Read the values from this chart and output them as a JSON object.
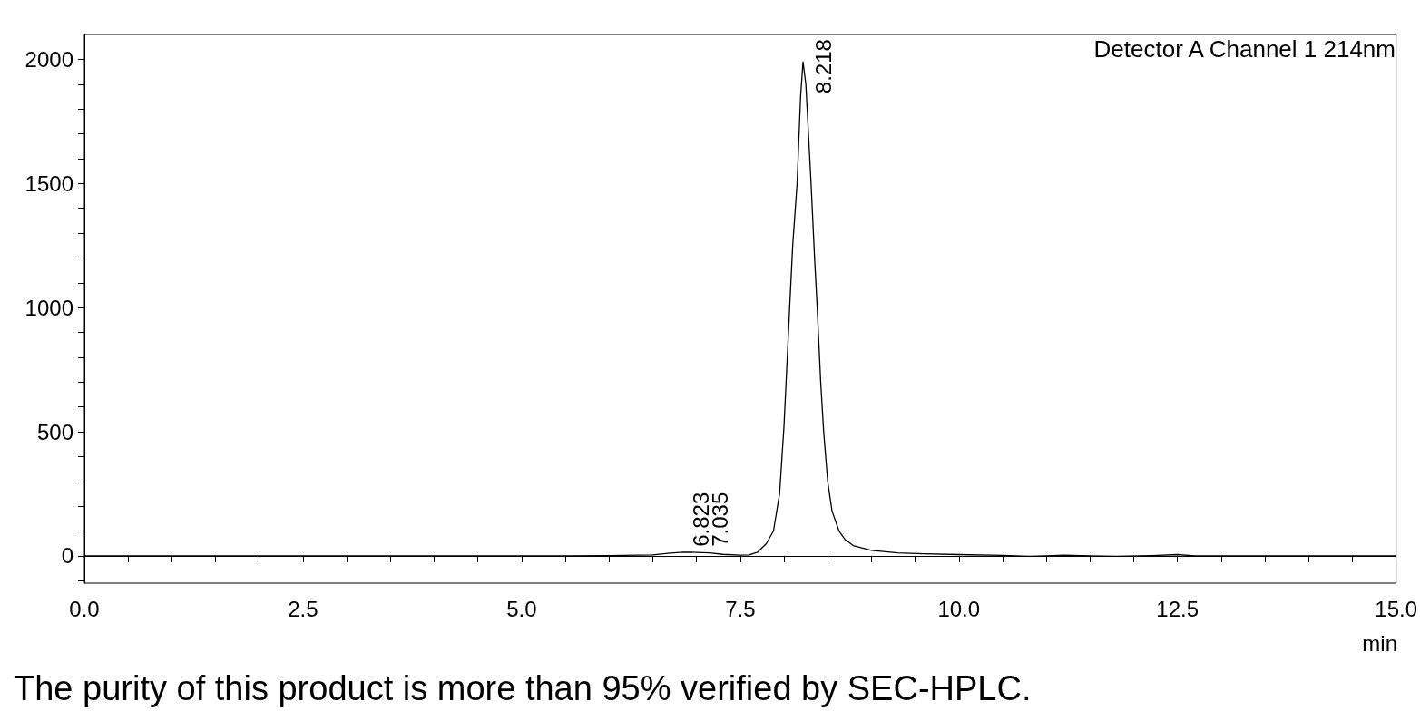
{
  "chart_data": {
    "type": "line",
    "xlabel": "min",
    "x": [
      0,
      5.5,
      6.0,
      6.5,
      6.7,
      6.85,
      7.0,
      7.15,
      7.3,
      7.5,
      7.6,
      7.7,
      7.8,
      7.88,
      7.95,
      8.0,
      8.065,
      8.1,
      8.15,
      8.19,
      8.218,
      8.25,
      8.31,
      8.35,
      8.38,
      8.42,
      8.454,
      8.5,
      8.55,
      8.63,
      8.7,
      8.8,
      9.0,
      9.3,
      9.6,
      10.0,
      10.5,
      10.8,
      11.0,
      11.2,
      11.5,
      11.8,
      12.2,
      12.5,
      12.7,
      13.0,
      15.0
    ],
    "series": [
      {
        "color": "#000000",
        "values": [
          0,
          0,
          1,
          4,
          11,
          15,
          14,
          12,
          6,
          3,
          4,
          15,
          50,
          100,
          250,
          520,
          1000,
          1250,
          1500,
          1850,
          1990,
          1900,
          1500,
          1200,
          1000,
          700,
          500,
          300,
          180,
          100,
          65,
          40,
          22,
          12,
          8,
          5,
          2,
          -2,
          0,
          3,
          0,
          -2,
          1,
          5,
          0,
          0,
          0
        ]
      }
    ],
    "xlim": [
      0,
      15
    ],
    "xticks": [
      {
        "value": 0,
        "label": "0.0"
      },
      {
        "value": 0.5,
        "label": null
      },
      {
        "value": 1,
        "label": null
      },
      {
        "value": 1.5,
        "label": null
      },
      {
        "value": 2,
        "label": null
      },
      2.5,
      {
        "value": 3,
        "label": null
      },
      {
        "value": 3.5,
        "label": null
      },
      {
        "value": 4,
        "label": null
      },
      {
        "value": 4.5,
        "label": null
      },
      {
        "value": 5,
        "label": "5.0"
      },
      {
        "value": 5.5,
        "label": null
      },
      {
        "value": 6,
        "label": null
      },
      {
        "value": 6.5,
        "label": null
      },
      {
        "value": 7,
        "label": null
      },
      7.5,
      {
        "value": 8,
        "label": null
      },
      {
        "value": 8.5,
        "label": null
      },
      {
        "value": 9,
        "label": null
      },
      {
        "value": 9.5,
        "label": null
      },
      {
        "value": 10,
        "label": "10.0"
      },
      {
        "value": 10.5,
        "label": null
      },
      {
        "value": 11,
        "label": null
      },
      {
        "value": 11.5,
        "label": null
      },
      {
        "value": 12,
        "label": null
      },
      12.5,
      {
        "value": 13,
        "label": null
      },
      {
        "value": 13.5,
        "label": null
      },
      {
        "value": 14,
        "label": null
      },
      {
        "value": 14.5,
        "label": null
      },
      {
        "value": 15,
        "label": "15.0"
      }
    ],
    "ylim": [
      -110,
      2100
    ],
    "yticks": [
      {
        "value": -100,
        "label": null
      },
      0,
      {
        "value": 100,
        "label": null
      },
      {
        "value": 200,
        "label": null
      },
      {
        "value": 300,
        "label": null
      },
      {
        "value": 400,
        "label": null
      },
      500,
      {
        "value": 600,
        "label": null
      },
      {
        "value": 700,
        "label": null
      },
      {
        "value": 800,
        "label": null
      },
      {
        "value": 900,
        "label": null
      },
      1000,
      {
        "value": 1100,
        "label": null
      },
      {
        "value": 1200,
        "label": null
      },
      {
        "value": 1300,
        "label": null
      },
      {
        "value": 1400,
        "label": null
      },
      1500,
      {
        "value": 1600,
        "label": null
      },
      {
        "value": 1700,
        "label": null
      },
      {
        "value": 1800,
        "label": null
      },
      {
        "value": 1900,
        "label": null
      },
      2000
    ],
    "marker": "none",
    "line_style": "solid",
    "annotations": [
      "Detector A Channel 1 214nm",
      {
        "text": "8.218",
        "x": 8.218,
        "y": 1840
      },
      {
        "text": "6.823",
        "x": 6.823,
        "y": 15
      },
      {
        "text": "7.035",
        "x": 7.035,
        "y": 15
      },
      "The purity of this product is more than 95% verified by SEC-HPLC."
    ]
  }
}
